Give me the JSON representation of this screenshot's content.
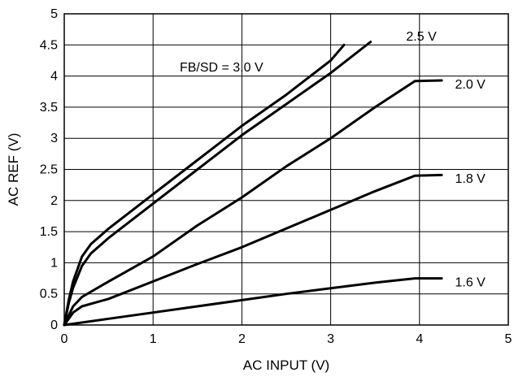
{
  "chart_data": {
    "type": "line",
    "title": "",
    "xlabel": "AC INPUT (V)",
    "ylabel": "AC REF (V)",
    "xlim": [
      0,
      5
    ],
    "ylim": [
      0,
      5
    ],
    "xticks": [
      "0",
      "1",
      "2",
      "3",
      "4",
      "5"
    ],
    "yticks": [
      "0",
      "0.5",
      "1",
      "1.5",
      "2",
      "2.5",
      "3",
      "3.5",
      "4",
      "4.5",
      "5"
    ],
    "grid": true,
    "legend": "none",
    "line_color": "#000000",
    "series": [
      {
        "name": "FB/SD = 3.0 V",
        "x": [
          0,
          0.05,
          0.1,
          0.2,
          0.3,
          0.5,
          1.0,
          1.5,
          2.0,
          2.5,
          3.0,
          3.15
        ],
        "y": [
          0,
          0.4,
          0.7,
          1.1,
          1.3,
          1.55,
          2.1,
          2.65,
          3.2,
          3.7,
          4.25,
          4.5
        ]
      },
      {
        "name": "2.5 V",
        "x": [
          0,
          0.05,
          0.1,
          0.2,
          0.3,
          0.5,
          1.0,
          1.5,
          2.0,
          2.5,
          3.0,
          3.45
        ],
        "y": [
          0,
          0.35,
          0.6,
          0.95,
          1.15,
          1.4,
          1.95,
          2.5,
          3.05,
          3.55,
          4.05,
          4.55
        ]
      },
      {
        "name": "2.0 V",
        "x": [
          0,
          0.1,
          0.2,
          0.5,
          1.0,
          1.5,
          2.0,
          2.5,
          3.0,
          3.5,
          3.95,
          4.25
        ],
        "y": [
          0,
          0.3,
          0.45,
          0.7,
          1.1,
          1.6,
          2.05,
          2.55,
          3.0,
          3.5,
          3.92,
          3.93
        ]
      },
      {
        "name": "1.8 V",
        "x": [
          0,
          0.1,
          0.2,
          0.5,
          1.0,
          1.5,
          2.0,
          2.5,
          3.0,
          3.5,
          3.95,
          4.25
        ],
        "y": [
          0,
          0.2,
          0.3,
          0.42,
          0.7,
          0.98,
          1.25,
          1.55,
          1.85,
          2.15,
          2.4,
          2.41
        ]
      },
      {
        "name": "1.6 V",
        "x": [
          0,
          0.5,
          1.0,
          1.5,
          2.0,
          2.5,
          3.0,
          3.5,
          3.95,
          4.25
        ],
        "y": [
          0,
          0.1,
          0.2,
          0.3,
          0.4,
          0.5,
          0.59,
          0.68,
          0.75,
          0.75
        ]
      }
    ],
    "annotations": [
      {
        "text": "FB/SD = 3.0 V",
        "x": 1.3,
        "y": 4.15
      },
      {
        "text": "2.5 V",
        "x": 3.85,
        "y": 4.65
      },
      {
        "text": "2.0 V",
        "x": 4.4,
        "y": 3.88
      },
      {
        "text": "1.8 V",
        "x": 4.4,
        "y": 2.36
      },
      {
        "text": "1.6 V",
        "x": 4.4,
        "y": 0.7
      }
    ]
  }
}
